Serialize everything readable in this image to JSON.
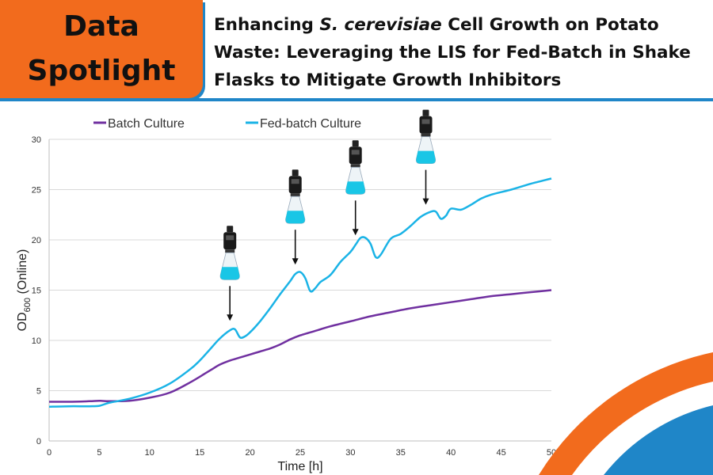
{
  "badge": {
    "line1": "Data",
    "line2": "Spotlight"
  },
  "headline": {
    "part1": "Enhancing ",
    "species": "S. cerevisiae",
    "part2": " Cell Growth on Potato Waste: Leveraging the LIS for Fed-Batch in Shake Flasks to Mitigate Growth Inhibitors"
  },
  "colors": {
    "accent_orange": "#f26b1d",
    "accent_blue": "#1f86c8",
    "batch": "#7030a0",
    "fedbatch": "#1ab3e6"
  },
  "chart_data": {
    "type": "line",
    "title": "",
    "xlabel": "Time [h]",
    "ylabel_main": "OD",
    "ylabel_sub": "600",
    "ylabel_suffix": " (Online)",
    "xlim": [
      0,
      50
    ],
    "ylim": [
      0,
      30
    ],
    "xticks": [
      0,
      5,
      10,
      15,
      20,
      25,
      30,
      35,
      40,
      45,
      50
    ],
    "yticks": [
      0,
      5,
      10,
      15,
      20,
      25,
      30
    ],
    "grid": true,
    "legend_position": "top-left",
    "series": [
      {
        "name": "Batch Culture",
        "x": [
          0,
          2,
          4,
          5,
          6,
          8,
          10,
          12,
          14,
          16,
          17,
          18,
          19,
          20,
          21,
          22,
          23,
          24,
          25,
          26,
          27,
          28,
          30,
          32,
          34,
          36,
          38,
          40,
          42,
          44,
          46,
          48,
          50
        ],
        "y": [
          3.9,
          3.9,
          3.95,
          4.0,
          3.95,
          4.0,
          4.3,
          4.8,
          5.8,
          7.0,
          7.6,
          8.0,
          8.3,
          8.6,
          8.9,
          9.2,
          9.6,
          10.1,
          10.5,
          10.8,
          11.1,
          11.4,
          11.9,
          12.4,
          12.8,
          13.2,
          13.5,
          13.8,
          14.1,
          14.4,
          14.6,
          14.8,
          15.0
        ]
      },
      {
        "name": "Fed-batch Culture",
        "x": [
          0,
          2,
          4,
          5,
          6,
          8,
          10,
          12,
          14,
          15,
          16,
          17,
          18,
          18.5,
          19,
          19.5,
          20,
          21,
          22,
          23,
          24,
          24.5,
          25,
          25.5,
          26,
          26.5,
          27,
          28,
          29,
          30,
          30.5,
          31,
          31.5,
          32,
          32.5,
          33,
          34,
          35,
          36,
          37,
          38,
          38.5,
          39,
          39.5,
          40,
          41,
          42,
          43,
          44,
          46,
          48,
          50
        ],
        "y": [
          3.4,
          3.45,
          3.45,
          3.5,
          3.8,
          4.2,
          4.8,
          5.7,
          7.1,
          8.0,
          9.1,
          10.2,
          11.0,
          11.1,
          10.3,
          10.4,
          10.8,
          11.9,
          13.2,
          14.6,
          15.9,
          16.6,
          16.8,
          16.2,
          14.9,
          15.2,
          15.8,
          16.5,
          17.8,
          18.8,
          19.5,
          20.2,
          20.2,
          19.6,
          18.3,
          18.5,
          20.1,
          20.6,
          21.4,
          22.3,
          22.8,
          22.8,
          22.1,
          22.4,
          23.1,
          23.0,
          23.5,
          24.1,
          24.5,
          25.0,
          25.6,
          26.1
        ]
      }
    ],
    "feed_events_x": [
      18,
      24.5,
      30.5,
      37.5
    ]
  }
}
